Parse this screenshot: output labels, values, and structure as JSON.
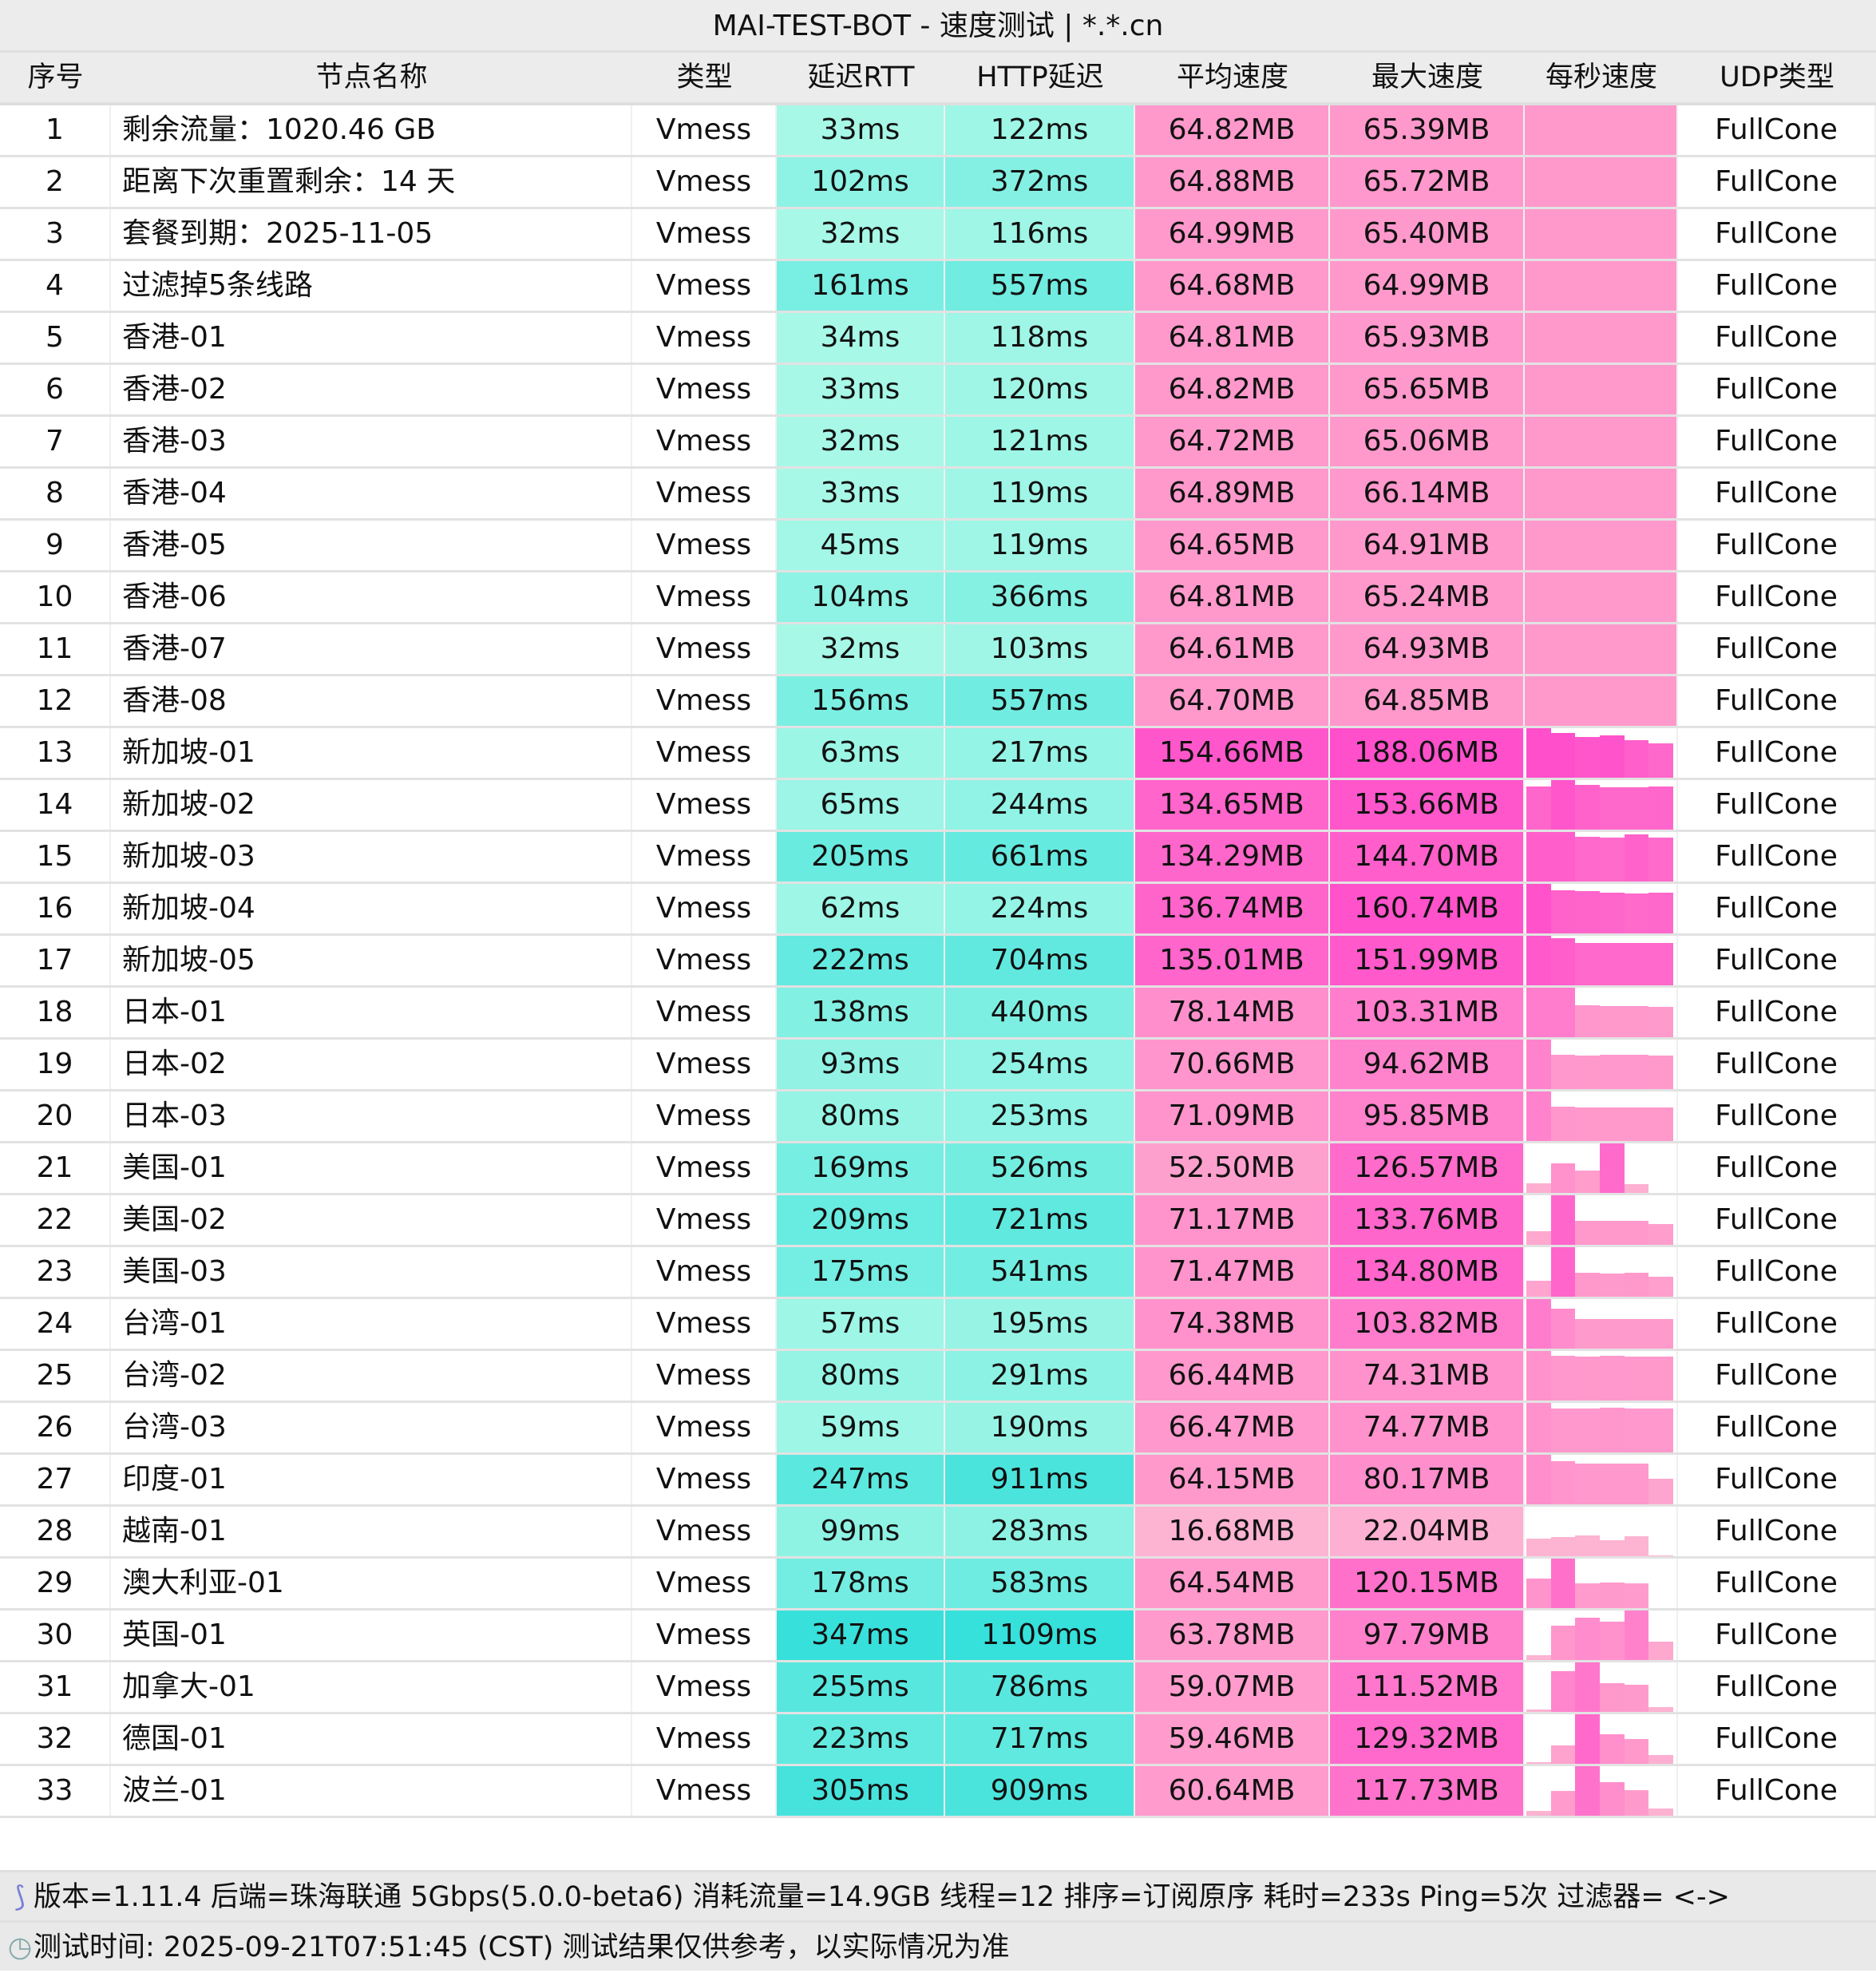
{
  "title": "MAI-TEST-BOT - 速度测试 | *.*.cn",
  "headers": [
    "序号",
    "节点名称",
    "类型",
    "延迟RTT",
    "HTTP延迟",
    "平均速度",
    "最大速度",
    "每秒速度",
    "UDP类型"
  ],
  "colors": {
    "latency_low": "#a8f8e7",
    "latency_high": "#36e0db",
    "speed_low": "#fdb3d2",
    "speed_mid": "#ff99cc",
    "speed_high": "#ff4fcb",
    "header_bg": "#ececec"
  },
  "rows": [
    {
      "id": "1",
      "name": "剩余流量：1020.46 GB",
      "type": "Vmess",
      "rtt": "33ms",
      "http": "122ms",
      "avg": "64.82MB",
      "max": "65.39MB",
      "per_second": [
        1,
        1,
        1,
        1,
        1,
        1
      ],
      "udp": "FullCone"
    },
    {
      "id": "2",
      "name": "距离下次重置剩余：14 天",
      "type": "Vmess",
      "rtt": "102ms",
      "http": "372ms",
      "avg": "64.88MB",
      "max": "65.72MB",
      "per_second": [
        1,
        1,
        1,
        1,
        1,
        1
      ],
      "udp": "FullCone"
    },
    {
      "id": "3",
      "name": "套餐到期：2025-11-05",
      "type": "Vmess",
      "rtt": "32ms",
      "http": "116ms",
      "avg": "64.99MB",
      "max": "65.40MB",
      "per_second": [
        1,
        1,
        1,
        1,
        1,
        1
      ],
      "udp": "FullCone"
    },
    {
      "id": "4",
      "name": "过滤掉5条线路",
      "type": "Vmess",
      "rtt": "161ms",
      "http": "557ms",
      "avg": "64.68MB",
      "max": "64.99MB",
      "per_second": [
        1,
        1,
        1,
        1,
        1,
        1
      ],
      "udp": "FullCone"
    },
    {
      "id": "5",
      "name": "香港-01",
      "type": "Vmess",
      "rtt": "34ms",
      "http": "118ms",
      "avg": "64.81MB",
      "max": "65.93MB",
      "per_second": [
        1,
        1,
        1,
        1,
        1,
        1
      ],
      "udp": "FullCone"
    },
    {
      "id": "6",
      "name": "香港-02",
      "type": "Vmess",
      "rtt": "33ms",
      "http": "120ms",
      "avg": "64.82MB",
      "max": "65.65MB",
      "per_second": [
        1,
        1,
        1,
        1,
        1,
        1
      ],
      "udp": "FullCone"
    },
    {
      "id": "7",
      "name": "香港-03",
      "type": "Vmess",
      "rtt": "32ms",
      "http": "121ms",
      "avg": "64.72MB",
      "max": "65.06MB",
      "per_second": [
        1,
        1,
        1,
        1,
        1,
        1
      ],
      "udp": "FullCone"
    },
    {
      "id": "8",
      "name": "香港-04",
      "type": "Vmess",
      "rtt": "33ms",
      "http": "119ms",
      "avg": "64.89MB",
      "max": "66.14MB",
      "per_second": [
        1,
        1,
        1,
        1,
        1,
        1
      ],
      "udp": "FullCone"
    },
    {
      "id": "9",
      "name": "香港-05",
      "type": "Vmess",
      "rtt": "45ms",
      "http": "119ms",
      "avg": "64.65MB",
      "max": "64.91MB",
      "per_second": [
        1,
        1,
        1,
        1,
        1,
        1
      ],
      "udp": "FullCone"
    },
    {
      "id": "10",
      "name": "香港-06",
      "type": "Vmess",
      "rtt": "104ms",
      "http": "366ms",
      "avg": "64.81MB",
      "max": "65.24MB",
      "per_second": [
        1,
        1,
        1,
        1,
        1,
        1
      ],
      "udp": "FullCone"
    },
    {
      "id": "11",
      "name": "香港-07",
      "type": "Vmess",
      "rtt": "32ms",
      "http": "103ms",
      "avg": "64.61MB",
      "max": "64.93MB",
      "per_second": [
        1,
        1,
        1,
        1,
        1,
        1
      ],
      "udp": "FullCone"
    },
    {
      "id": "12",
      "name": "香港-08",
      "type": "Vmess",
      "rtt": "156ms",
      "http": "557ms",
      "avg": "64.70MB",
      "max": "64.85MB",
      "per_second": [
        1,
        1,
        1,
        1,
        1,
        1
      ],
      "udp": "FullCone"
    },
    {
      "id": "13",
      "name": "新加坡-01",
      "type": "Vmess",
      "rtt": "63ms",
      "http": "217ms",
      "avg": "154.66MB",
      "max": "188.06MB",
      "per_second": [
        1,
        0.9,
        0.82,
        0.85,
        0.76,
        0.7
      ],
      "udp": "FullCone"
    },
    {
      "id": "14",
      "name": "新加坡-02",
      "type": "Vmess",
      "rtt": "65ms",
      "http": "244ms",
      "avg": "134.65MB",
      "max": "153.66MB",
      "per_second": [
        0.87,
        1,
        0.9,
        0.85,
        0.85,
        0.87
      ],
      "udp": "FullCone"
    },
    {
      "id": "15",
      "name": "新加坡-03",
      "type": "Vmess",
      "rtt": "205ms",
      "http": "661ms",
      "avg": "134.29MB",
      "max": "144.70MB",
      "per_second": [
        1,
        1,
        0.9,
        0.88,
        0.95,
        0.88
      ],
      "udp": "FullCone"
    },
    {
      "id": "16",
      "name": "新加坡-04",
      "type": "Vmess",
      "rtt": "62ms",
      "http": "224ms",
      "avg": "136.74MB",
      "max": "160.74MB",
      "per_second": [
        1,
        0.87,
        0.85,
        0.83,
        0.8,
        0.82
      ],
      "udp": "FullCone"
    },
    {
      "id": "17",
      "name": "新加坡-05",
      "type": "Vmess",
      "rtt": "222ms",
      "http": "704ms",
      "avg": "135.01MB",
      "max": "151.99MB",
      "per_second": [
        1,
        0.95,
        0.85,
        0.85,
        0.85,
        0.85
      ],
      "udp": "FullCone"
    },
    {
      "id": "18",
      "name": "日本-01",
      "type": "Vmess",
      "rtt": "138ms",
      "http": "440ms",
      "avg": "78.14MB",
      "max": "103.31MB",
      "per_second": [
        1,
        1,
        0.65,
        0.63,
        0.63,
        0.62
      ],
      "udp": "FullCone"
    },
    {
      "id": "19",
      "name": "日本-02",
      "type": "Vmess",
      "rtt": "93ms",
      "http": "254ms",
      "avg": "70.66MB",
      "max": "94.62MB",
      "per_second": [
        1,
        0.7,
        0.68,
        0.7,
        0.7,
        0.68
      ],
      "udp": "FullCone"
    },
    {
      "id": "20",
      "name": "日本-03",
      "type": "Vmess",
      "rtt": "80ms",
      "http": "253ms",
      "avg": "71.09MB",
      "max": "95.85MB",
      "per_second": [
        1,
        0.7,
        0.68,
        0.68,
        0.67,
        0.68
      ],
      "udp": "FullCone"
    },
    {
      "id": "21",
      "name": "美国-01",
      "type": "Vmess",
      "rtt": "169ms",
      "http": "526ms",
      "avg": "52.50MB",
      "max": "126.57MB",
      "per_second": [
        0.2,
        0.6,
        0.45,
        1,
        0.17,
        0
      ],
      "udp": "FullCone"
    },
    {
      "id": "22",
      "name": "美国-02",
      "type": "Vmess",
      "rtt": "209ms",
      "http": "721ms",
      "avg": "71.17MB",
      "max": "133.76MB",
      "per_second": [
        0.28,
        1,
        0.48,
        0.48,
        0.48,
        0.42
      ],
      "udp": "FullCone"
    },
    {
      "id": "23",
      "name": "美国-03",
      "type": "Vmess",
      "rtt": "175ms",
      "http": "541ms",
      "avg": "71.47MB",
      "max": "134.80MB",
      "per_second": [
        0.33,
        1,
        0.48,
        0.47,
        0.48,
        0.4
      ],
      "udp": "FullCone"
    },
    {
      "id": "24",
      "name": "台湾-01",
      "type": "Vmess",
      "rtt": "57ms",
      "http": "195ms",
      "avg": "74.38MB",
      "max": "103.82MB",
      "per_second": [
        1,
        0.8,
        0.6,
        0.6,
        0.6,
        0.6
      ],
      "udp": "FullCone"
    },
    {
      "id": "25",
      "name": "台湾-02",
      "type": "Vmess",
      "rtt": "80ms",
      "http": "291ms",
      "avg": "66.44MB",
      "max": "74.31MB",
      "per_second": [
        1,
        0.9,
        0.88,
        0.9,
        0.88,
        0.88
      ],
      "udp": "FullCone"
    },
    {
      "id": "26",
      "name": "台湾-03",
      "type": "Vmess",
      "rtt": "59ms",
      "http": "190ms",
      "avg": "66.47MB",
      "max": "74.77MB",
      "per_second": [
        1,
        0.88,
        0.88,
        0.9,
        0.88,
        0.88
      ],
      "udp": "FullCone"
    },
    {
      "id": "27",
      "name": "印度-01",
      "type": "Vmess",
      "rtt": "247ms",
      "http": "911ms",
      "avg": "64.15MB",
      "max": "80.17MB",
      "per_second": [
        1,
        0.87,
        0.82,
        0.82,
        0.82,
        0.52
      ],
      "udp": "FullCone"
    },
    {
      "id": "28",
      "name": "越南-01",
      "type": "Vmess",
      "rtt": "99ms",
      "http": "283ms",
      "avg": "16.68MB",
      "max": "22.04MB",
      "per_second": [
        0.35,
        0.38,
        0.42,
        0.33,
        0.4,
        0.02
      ],
      "udp": "FullCone"
    },
    {
      "id": "29",
      "name": "澳大利亚-01",
      "type": "Vmess",
      "rtt": "178ms",
      "http": "583ms",
      "avg": "64.54MB",
      "max": "120.15MB",
      "per_second": [
        0.6,
        1,
        0.5,
        0.52,
        0.5,
        0
      ],
      "udp": "FullCone"
    },
    {
      "id": "30",
      "name": "英国-01",
      "type": "Vmess",
      "rtt": "347ms",
      "http": "1109ms",
      "avg": "63.78MB",
      "max": "97.79MB",
      "per_second": [
        0.1,
        0.7,
        0.85,
        0.78,
        1,
        0.37
      ],
      "udp": "FullCone"
    },
    {
      "id": "31",
      "name": "加拿大-01",
      "type": "Vmess",
      "rtt": "255ms",
      "http": "786ms",
      "avg": "59.07MB",
      "max": "111.52MB",
      "per_second": [
        0.05,
        0.83,
        1,
        0.58,
        0.55,
        0.1
      ],
      "udp": "FullCone"
    },
    {
      "id": "32",
      "name": "德国-01",
      "type": "Vmess",
      "rtt": "223ms",
      "http": "717ms",
      "avg": "59.46MB",
      "max": "129.32MB",
      "per_second": [
        0.03,
        0.37,
        1,
        0.6,
        0.5,
        0.18
      ],
      "udp": "FullCone"
    },
    {
      "id": "33",
      "name": "波兰-01",
      "type": "Vmess",
      "rtt": "305ms",
      "http": "909ms",
      "avg": "60.64MB",
      "max": "117.73MB",
      "per_second": [
        0.1,
        0.5,
        1,
        0.68,
        0.52,
        0.15
      ],
      "udp": "FullCone"
    }
  ],
  "footer": {
    "info_icon": "dna-icon",
    "info": "版本=1.11.4  后端=珠海联通 5Gbps(5.0.0-beta6) 消耗流量=14.9GB  线程=12  排序=订阅原序  耗时=233s  Ping=5次  过滤器= <->",
    "time_icon": "clock-icon",
    "time": "测试时间: 2025-09-21T07:51:45 (CST)  测试结果仅供参考，以实际情况为准"
  }
}
